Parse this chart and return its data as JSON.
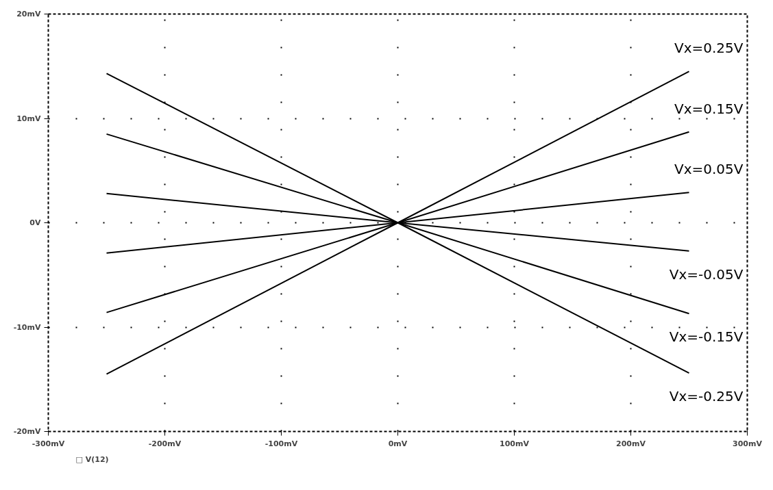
{
  "chart_data": {
    "type": "line",
    "xlim": [
      -300,
      300
    ],
    "xticks": [
      {
        "value": -300,
        "label": "-300mV"
      },
      {
        "value": -200,
        "label": "-200mV"
      },
      {
        "value": -100,
        "label": "-100mV"
      },
      {
        "value": 0,
        "label": "0mV"
      },
      {
        "value": 100,
        "label": "100mV"
      },
      {
        "value": 200,
        "label": "200mV"
      },
      {
        "value": 300,
        "label": "300mV"
      }
    ],
    "ylim": [
      -20,
      20
    ],
    "yticks": [
      {
        "value": -20,
        "label": "-20mV"
      },
      {
        "value": -10,
        "label": "-10mV"
      },
      {
        "value": 0,
        "label": "0V"
      },
      {
        "value": 10,
        "label": "10mV"
      },
      {
        "value": 20,
        "label": "20mV"
      }
    ],
    "x": [
      -250,
      0,
      250
    ],
    "series": [
      {
        "name": "Vx=0.25V",
        "color": "#000000",
        "values": [
          -14.5,
          0,
          14.5
        ]
      },
      {
        "name": "Vx=0.15V",
        "color": "#000000",
        "values": [
          -8.6,
          0,
          8.7
        ]
      },
      {
        "name": "Vx=0.05V",
        "color": "#000000",
        "values": [
          -2.9,
          0,
          2.9
        ]
      },
      {
        "name": "Vx=-0.05V",
        "color": "#000000",
        "values": [
          2.8,
          0,
          -2.7
        ]
      },
      {
        "name": "Vx=-0.15V",
        "color": "#000000",
        "values": [
          8.5,
          0,
          -8.7
        ]
      },
      {
        "name": "Vx=-0.25V",
        "color": "#000000",
        "values": [
          14.3,
          0,
          -14.4
        ]
      }
    ],
    "grid": true,
    "line_style": "solid",
    "annotations": [
      "□ V(12)"
    ]
  }
}
